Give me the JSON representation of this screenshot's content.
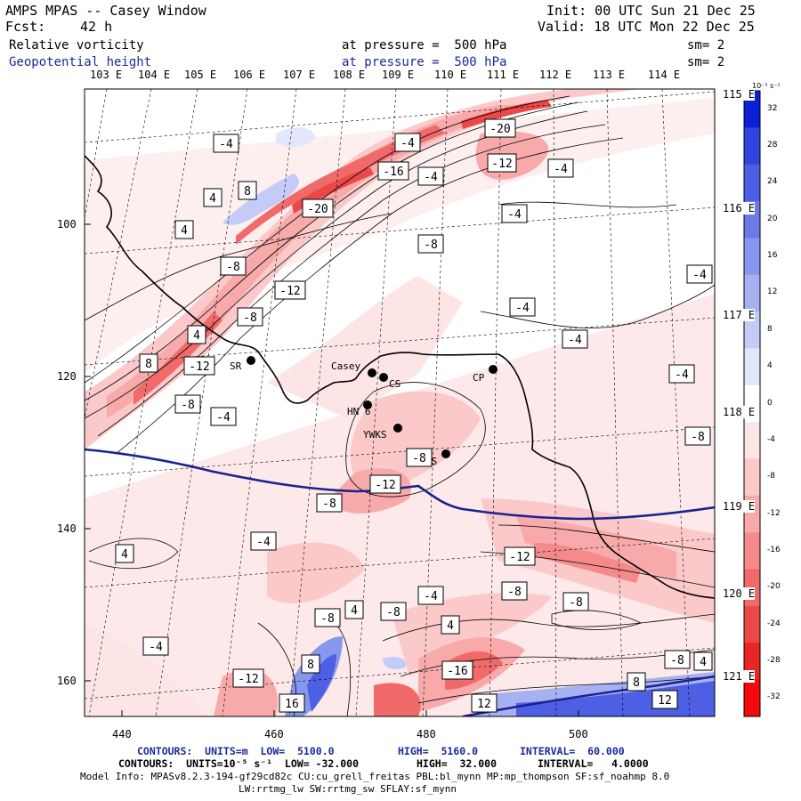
{
  "header": {
    "title": "AMPS MPAS -- Casey Window",
    "init": "Init: 00 UTC Sun 21 Dec 25",
    "fcst_label": "Fcst:",
    "fcst_value": "42 h",
    "valid": "Valid: 18 UTC Mon 22 Dec 25",
    "field1": "Relative vorticity",
    "field1_level": "at pressure =  500 hPa",
    "field1_sm": "sm= 2",
    "field2": "Geopotential height",
    "field2_level": "at pressure =  500 hPa",
    "field2_sm": "sm= 2"
  },
  "longitude_labels": [
    "103 E",
    "104 E",
    "105 E",
    "106 E",
    "107 E",
    "108 E",
    "109 E",
    "110 E",
    "111 E",
    "112 E",
    "113 E",
    "114 E"
  ],
  "latitude_labels": [
    "115 E",
    "116 E",
    "117 E",
    "118 E",
    "119 E",
    "120 E",
    "121 E"
  ],
  "y_axis_ticks": [
    "100",
    "120",
    "140",
    "160"
  ],
  "x_axis_ticks": [
    "440",
    "460",
    "480",
    "500"
  ],
  "stations": [
    "Casey",
    "CS",
    "HN 6",
    "YWKS",
    "DS",
    "CP",
    "SR"
  ],
  "contour_labels": [
    "-4",
    "-20",
    "-12",
    "-4",
    "-16",
    "-4",
    "8",
    "4",
    "-20",
    "4",
    "-8",
    "-4",
    "-8",
    "-12",
    "-4",
    "-8",
    "4",
    "-4",
    "-4",
    "8",
    "-12",
    "-8",
    "-4",
    "-8",
    "-12",
    "-4",
    "-8",
    "-8",
    "-8",
    "-4",
    "4",
    "-4",
    "-12",
    "-8",
    "-8",
    "4",
    "-8",
    "-4",
    "4",
    "-4",
    "8",
    "-16",
    "16",
    "-12",
    "12",
    "8",
    "-8",
    "4",
    "12"
  ],
  "colorbar": {
    "units": "10⁻⁵ s⁻¹",
    "labels": [
      "32",
      "28",
      "24",
      "20",
      "16",
      "12",
      "8",
      "4",
      "0",
      "-4",
      "-8",
      "-12",
      "-16",
      "-20",
      "-24",
      "-28",
      "-32"
    ],
    "colors": [
      "#0a1fd6",
      "#3043dd",
      "#4d5fe2",
      "#6a7be8",
      "#8897ee",
      "#a6b1f2",
      "#c4cbf6",
      "#e3e7fb",
      "#ffffff",
      "#fde5e5",
      "#fbc9c9",
      "#f8aaaa",
      "#f48a8a",
      "#f06a6a",
      "#ec4848",
      "#e82626",
      "#f20a0a"
    ]
  },
  "footer": {
    "line1_a": "CONTOURS:  UNITS=m  LOW=  5100.0",
    "line1_b": "HIGH=  5160.0",
    "line1_c": "INTERVAL=  60.000",
    "line2_a": "CONTOURS:  UNITS=10⁻⁵ s⁻¹  LOW= -32.000",
    "line2_b": "HIGH=  32.000",
    "line2_c": "INTERVAL=   4.0000",
    "line3": "Model Info: MPASv8.2.3-194-gf29cd82c CU:cu_grell_freitas PBL:bl_mynn MP:mp_thompson SF:sf_noahmp 8.0",
    "line4": "LW:rrtmg_lw SW:rrtmg_sw SFLAY:sf_mynn"
  }
}
